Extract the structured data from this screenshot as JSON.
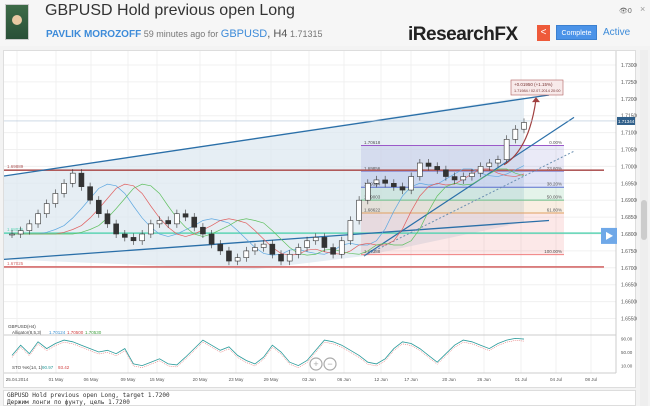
{
  "header": {
    "title": "GBPUSD Hold previous open Long",
    "author": "PAVLIK MOROZOFF",
    "time_ago": "59 minutes ago for",
    "symbol": "GBPUSD",
    "timeframe": ", H4",
    "price": "1.71315",
    "logo": "iResearchFX",
    "complete_label": "Complete",
    "status": "Active",
    "views": "0",
    "share_icon": "share-icon",
    "close_icon": "×"
  },
  "chart": {
    "legend_symbol": "GBPUSD(H4)",
    "alligator_label": "Alligator(8,5,3)",
    "alligator_values": [
      "1.70124",
      "1.70500",
      "1.70530"
    ],
    "stoch_label": "STO %K(14, 1)",
    "stoch_values": [
      "90.97",
      "93.42"
    ],
    "current_price": "1.71344",
    "price_ticks": [
      "1.73000",
      "1.72500",
      "1.72000",
      "1.71500",
      "1.71000",
      "1.70500",
      "1.70000",
      "1.69500",
      "1.69000",
      "1.68500",
      "1.68000",
      "1.67500",
      "1.67000",
      "1.66500",
      "1.66000",
      "1.65500"
    ],
    "stoch_ticks": [
      "90.00",
      "50.00",
      "10.00"
    ],
    "date_ticks": [
      "25.04.2014",
      "01 May",
      "06 May",
      "09 May",
      "15 May",
      "20 May",
      "23 May",
      "29 May",
      "03 Jun",
      "06 Jun",
      "12 Jun",
      "17 Jun",
      "20 Jun",
      "26 Jun",
      "01 Jul",
      "04 Jul",
      "08 Jul"
    ],
    "hlines": [
      {
        "label": "1.69889",
        "price": 1.69889,
        "color": "#b05a5a"
      },
      {
        "label": "1.68026",
        "price": 1.68026,
        "color": "#5ed4b4"
      },
      {
        "label": "1.67025",
        "price": 1.67025,
        "color": "#d46a6a"
      }
    ],
    "fib": [
      {
        "label": "1.70618",
        "pct": "0.00%",
        "price": 1.70618,
        "color": "#9b59c9"
      },
      {
        "label": "1.69856",
        "pct": "23.60%",
        "price": 1.69856,
        "color": "#8a8ad0"
      },
      {
        "label": "1.69384",
        "pct": "38.20%",
        "price": 1.69384,
        "color": "#5a6fd0"
      },
      {
        "label": "1.69003",
        "pct": "50.00%",
        "price": 1.69003,
        "color": "#6bbf8a"
      },
      {
        "label": "1.68622",
        "pct": "61.80%",
        "price": 1.68622,
        "color": "#e0a060"
      },
      {
        "label": "1.67388",
        "pct": "100.00%",
        "price": 1.67388,
        "color": "#f08080"
      }
    ],
    "annotation": {
      "line1": "+0.01950 (+1.15%)",
      "line2": "1.71984 / 02.07.2014 20:00"
    },
    "closes": [
      1.68,
      1.681,
      1.683,
      1.686,
      1.689,
      1.692,
      1.695,
      1.698,
      1.694,
      1.69,
      1.686,
      1.683,
      1.68,
      1.679,
      1.678,
      1.68,
      1.683,
      1.684,
      1.683,
      1.686,
      1.685,
      1.682,
      1.68,
      1.677,
      1.675,
      1.672,
      1.673,
      1.675,
      1.676,
      1.677,
      1.674,
      1.672,
      1.674,
      1.676,
      1.678,
      1.679,
      1.676,
      1.674,
      1.678,
      1.684,
      1.69,
      1.695,
      1.696,
      1.695,
      1.694,
      1.693,
      1.697,
      1.701,
      1.7,
      1.699,
      1.697,
      1.696,
      1.697,
      1.698,
      1.7,
      1.701,
      1.702,
      1.708,
      1.711,
      1.713
    ],
    "stoch": [
      40,
      70,
      45,
      80,
      60,
      75,
      85,
      80,
      70,
      60,
      50,
      55,
      45,
      60,
      15,
      10,
      20,
      30,
      15,
      12,
      35,
      60,
      85,
      70,
      55,
      65,
      40,
      25,
      15,
      35,
      70,
      50,
      20,
      10,
      25,
      55,
      85,
      80,
      70,
      55,
      40,
      20,
      15,
      30,
      60,
      80,
      75,
      60,
      40,
      20,
      45,
      70,
      85,
      80,
      70,
      60,
      75,
      85,
      90,
      88
    ],
    "zoom_in": "+",
    "zoom_out": "−"
  },
  "description": {
    "line1": "GBPUSD Hold previous open Long, target 1.7200",
    "line2": "Держим лонги по фунту, цель 1.7200"
  }
}
